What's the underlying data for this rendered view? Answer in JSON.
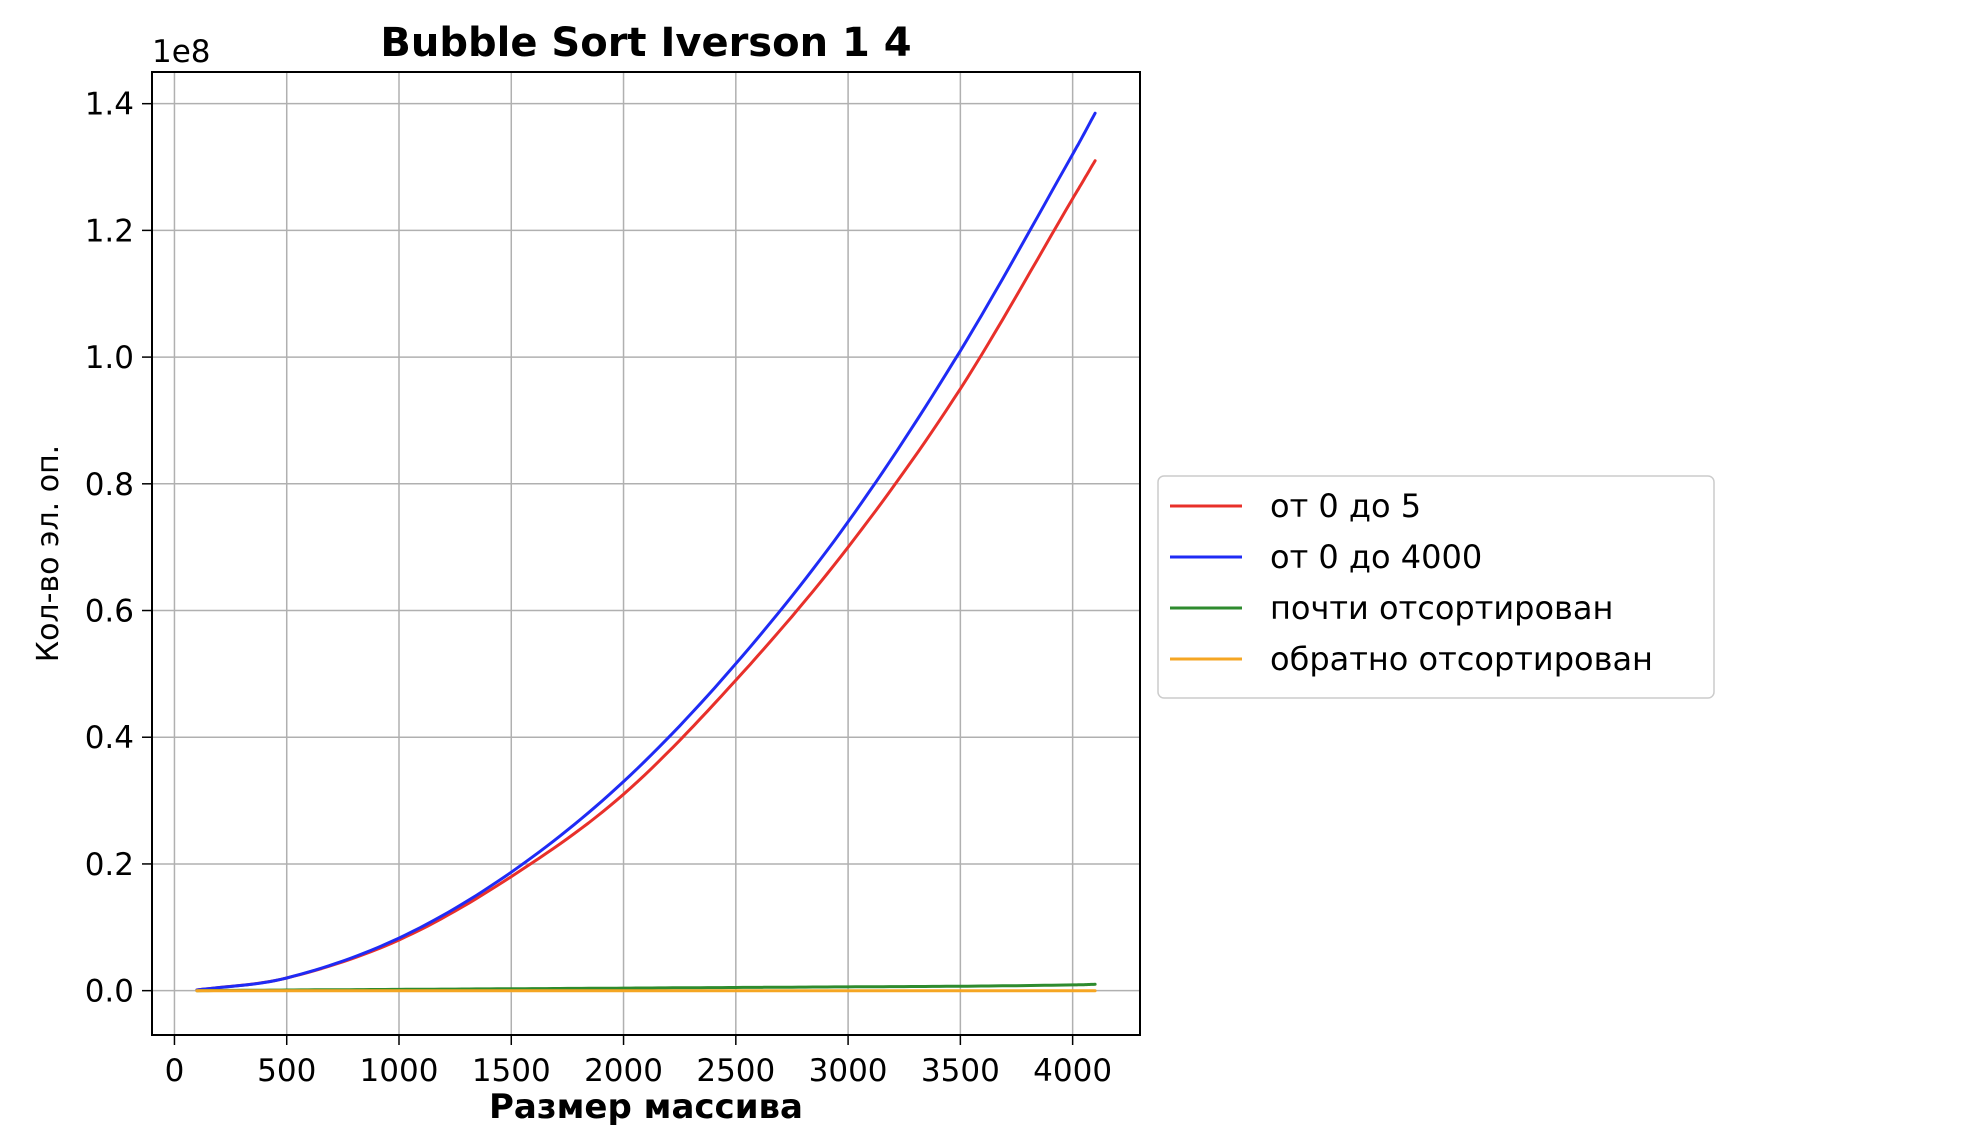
{
  "chart_data": {
    "type": "line",
    "title": "Bubble Sort Iverson 1 4",
    "xlabel": "Размер массива",
    "ylabel": "Кол-во эл. оп.",
    "y_offset_label": "1e8",
    "y_scale": 100000000,
    "xlim": [
      -100,
      4300
    ],
    "ylim": [
      -0.07,
      1.45
    ],
    "x_ticks": [
      0,
      500,
      1000,
      1500,
      2000,
      2500,
      3000,
      3500,
      4000
    ],
    "x_tick_labels": [
      "0",
      "500",
      "1000",
      "1500",
      "2000",
      "2500",
      "3000",
      "3500",
      "4000"
    ],
    "y_ticks": [
      0.0,
      0.2,
      0.4,
      0.6,
      0.8,
      1.0,
      1.2,
      1.4
    ],
    "y_tick_labels": [
      "0.0",
      "0.2",
      "0.4",
      "0.6",
      "0.8",
      "1.0",
      "1.2",
      "1.4"
    ],
    "grid": true,
    "legend_position": "right, outside plot",
    "x": [
      100,
      500,
      1000,
      1500,
      2000,
      2500,
      3000,
      3500,
      4000,
      4100
    ],
    "series": [
      {
        "name": "от 0 до 5",
        "color": "#e8302a",
        "values": [
          0.001,
          0.02,
          0.08,
          0.18,
          0.31,
          0.49,
          0.7,
          0.95,
          1.25,
          1.31
        ]
      },
      {
        "name": "от 0 до 4000",
        "color": "#1f2bf5",
        "values": [
          0.001,
          0.02,
          0.083,
          0.187,
          0.33,
          0.516,
          0.74,
          1.01,
          1.32,
          1.385
        ]
      },
      {
        "name": "почти отсортирован",
        "color": "#2e8b2e",
        "values": [
          0.0,
          0.001,
          0.002,
          0.003,
          0.004,
          0.005,
          0.006,
          0.007,
          0.009,
          0.01
        ]
      },
      {
        "name": "обратно отсортирован",
        "color": "#f5a623",
        "values": [
          0.0,
          0.0,
          0.0,
          0.0,
          0.0,
          0.0,
          0.0,
          0.0,
          0.0,
          0.0
        ]
      }
    ]
  }
}
